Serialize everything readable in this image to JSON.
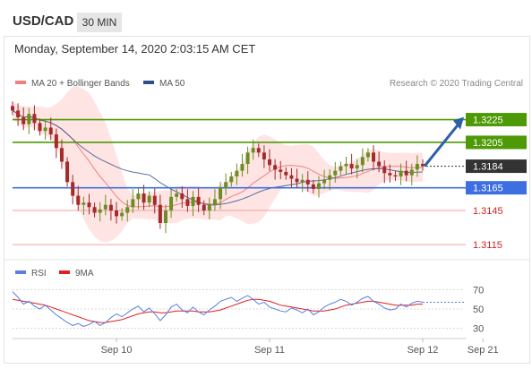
{
  "header": {
    "symbol": "USD/CAD",
    "timeframe": "30 MIN"
  },
  "timestamp": "Monday, September 14, 2020 2:03:15 AM CET",
  "credit": "Research © 2020 Trading Central",
  "colors": {
    "resistance": "#4e9a06",
    "support": "#3d6fe0",
    "support_light": "#f1a0a0",
    "target_arrow": "#2c5fa8",
    "current": "#333333",
    "bollinger": "#ffd9d9",
    "ma20": "#f08080",
    "ma50": "#2c4f8c",
    "rsi": "#5a7fe0",
    "rsi_ma": "#e02020",
    "candle_up": "#6b8e23",
    "candle_down": "#a52a2a"
  },
  "chart_data": [
    {
      "type": "candlestick",
      "legend": [
        {
          "name": "MA 20 + Bollinger Bands",
          "color": "#f08080"
        },
        {
          "name": "MA 50",
          "color": "#2c4f8c"
        }
      ],
      "ylim": [
        1.3108,
        1.3242
      ],
      "levels": [
        {
          "value": 1.3225,
          "label": "1.3225",
          "kind": "resistance"
        },
        {
          "value": 1.3205,
          "label": "1.3205",
          "kind": "resistance"
        },
        {
          "value": 1.3184,
          "label": "1.3184",
          "kind": "current"
        },
        {
          "value": 1.3165,
          "label": "1.3165",
          "kind": "support"
        },
        {
          "value": 1.3145,
          "label": "1.3145",
          "kind": "support_light"
        },
        {
          "value": 1.3115,
          "label": "1.3115",
          "kind": "support_light"
        }
      ],
      "x_ticks": [
        {
          "label": "Sep 10",
          "index": 19
        },
        {
          "label": "Sep 11",
          "index": 47
        },
        {
          "label": "Sep 12",
          "index": 75
        },
        {
          "label": "Sep 21",
          "index": 86
        }
      ],
      "close": [
        1.3233,
        1.3227,
        1.3221,
        1.323,
        1.3222,
        1.3215,
        1.3218,
        1.3212,
        1.32,
        1.3188,
        1.317,
        1.3158,
        1.315,
        1.3152,
        1.3148,
        1.3143,
        1.3146,
        1.315,
        1.3145,
        1.314,
        1.3143,
        1.3148,
        1.3155,
        1.316,
        1.3152,
        1.3158,
        1.315,
        1.3134,
        1.3145,
        1.3157,
        1.316,
        1.3155,
        1.3149,
        1.3157,
        1.315,
        1.3145,
        1.315,
        1.3155,
        1.3165,
        1.317,
        1.3175,
        1.318,
        1.3186,
        1.3196,
        1.32,
        1.3196,
        1.319,
        1.3185,
        1.3181,
        1.3179,
        1.3176,
        1.3173,
        1.317,
        1.3172,
        1.3168,
        1.3164,
        1.3169,
        1.3172,
        1.3176,
        1.318,
        1.3184,
        1.3186,
        1.3182,
        1.3185,
        1.3192,
        1.3196,
        1.3188,
        1.3184,
        1.3178,
        1.3176,
        1.3175,
        1.318,
        1.3176,
        1.3181,
        1.3186,
        1.3184
      ]
    },
    {
      "type": "line",
      "legend": [
        {
          "name": "RSI",
          "color": "#5a7fe0"
        },
        {
          "name": "9MA",
          "color": "#e02020"
        }
      ],
      "ylim": [
        25,
        75
      ],
      "y_ticks": [
        70,
        50,
        30
      ],
      "rsi": [
        68,
        62,
        55,
        58,
        53,
        50,
        54,
        49,
        44,
        40,
        36,
        33,
        35,
        32,
        34,
        37,
        33,
        36,
        41,
        45,
        42,
        46,
        50,
        53,
        47,
        51,
        45,
        38,
        44,
        52,
        55,
        49,
        46,
        52,
        47,
        44,
        49,
        53,
        58,
        60,
        62,
        58,
        61,
        64,
        60,
        55,
        57,
        52,
        50,
        48,
        47,
        51,
        49,
        46,
        50,
        44,
        47,
        52,
        55,
        57,
        60,
        58,
        54,
        57,
        61,
        63,
        58,
        55,
        51,
        49,
        50,
        55,
        52,
        56,
        58,
        57
      ],
      "rsi_ma": [
        60,
        59,
        58,
        57,
        56,
        55,
        54,
        52,
        50,
        48,
        46,
        44,
        42,
        40,
        38,
        37,
        36,
        36,
        37,
        38,
        39,
        41,
        43,
        45,
        46,
        47,
        47,
        46,
        46,
        47,
        48,
        48,
        48,
        48,
        47,
        47,
        47,
        48,
        49,
        51,
        53,
        55,
        57,
        59,
        60,
        60,
        59,
        58,
        56,
        54,
        53,
        52,
        51,
        50,
        49,
        48,
        48,
        48,
        49,
        50,
        52,
        54,
        55,
        56,
        57,
        58,
        58,
        57,
        56,
        55,
        54,
        54,
        54,
        54,
        55,
        55
      ]
    }
  ]
}
